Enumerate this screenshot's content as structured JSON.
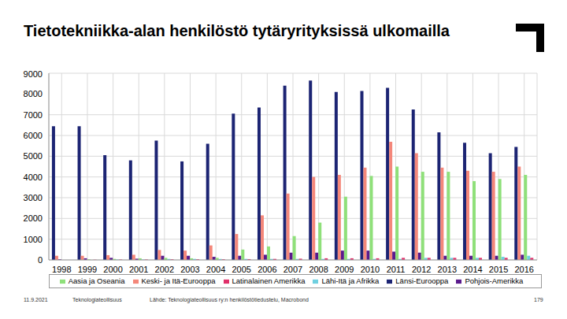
{
  "chart_data": {
    "type": "bar",
    "title": "Tietotekniikka-alan henkilöstö tytäryrityksissä ulkomailla",
    "categories": [
      "1998",
      "1999",
      "2000",
      "2001",
      "2002",
      "2003",
      "2004",
      "2005",
      "2006",
      "2007",
      "2008",
      "2009",
      "2010",
      "2011",
      "2012",
      "2013",
      "2014",
      "2015",
      "2016"
    ],
    "series": [
      {
        "name": "Länsi-Eurooppa",
        "color": "#1c2473",
        "values": [
          6450,
          6450,
          5050,
          4800,
          5750,
          4750,
          5600,
          7050,
          7350,
          8400,
          8650,
          8100,
          8150,
          8300,
          7250,
          6150,
          5650,
          5150,
          5450
        ]
      },
      {
        "name": "Keski- ja Itä-Eurooppa",
        "color": "#f4877a",
        "values": [
          200,
          200,
          230,
          250,
          480,
          450,
          700,
          1250,
          2150,
          3200,
          4000,
          4100,
          4450,
          5700,
          5150,
          4450,
          4300,
          4250,
          4500
        ]
      },
      {
        "name": "Pohjois-Amerikka",
        "color": "#5a1a8c",
        "values": [
          30,
          80,
          100,
          60,
          200,
          200,
          150,
          200,
          250,
          350,
          350,
          450,
          450,
          400,
          350,
          200,
          200,
          200,
          250
        ]
      },
      {
        "name": "Aasia ja Oseania",
        "color": "#8fe07a",
        "values": [
          0,
          30,
          50,
          80,
          100,
          80,
          100,
          500,
          650,
          1150,
          1800,
          3050,
          4050,
          4500,
          4250,
          4250,
          3800,
          3900,
          4100
        ]
      },
      {
        "name": "Lähi-Itä ja Afrikka",
        "color": "#6fd0e0",
        "values": [
          0,
          0,
          20,
          20,
          50,
          50,
          50,
          50,
          50,
          50,
          50,
          50,
          50,
          50,
          100,
          100,
          100,
          150,
          200
        ]
      },
      {
        "name": "Latinalainen Amerikka",
        "color": "#e0306a",
        "values": [
          0,
          10,
          20,
          20,
          30,
          30,
          30,
          40,
          50,
          60,
          80,
          80,
          80,
          100,
          100,
          100,
          100,
          100,
          100
        ]
      }
    ],
    "ylim": [
      0,
      9000
    ],
    "yticks": [
      0,
      1000,
      2000,
      3000,
      4000,
      5000,
      6000,
      7000,
      8000,
      9000
    ],
    "grid": true,
    "legend": "bottom"
  },
  "footer": {
    "date": "11.9.2021",
    "organization": "Teknologiateollisuus",
    "source": "Lähde: Teknologiateollisuus ry:n henkilöstötiedustelu, Macrobond",
    "page": "179"
  }
}
